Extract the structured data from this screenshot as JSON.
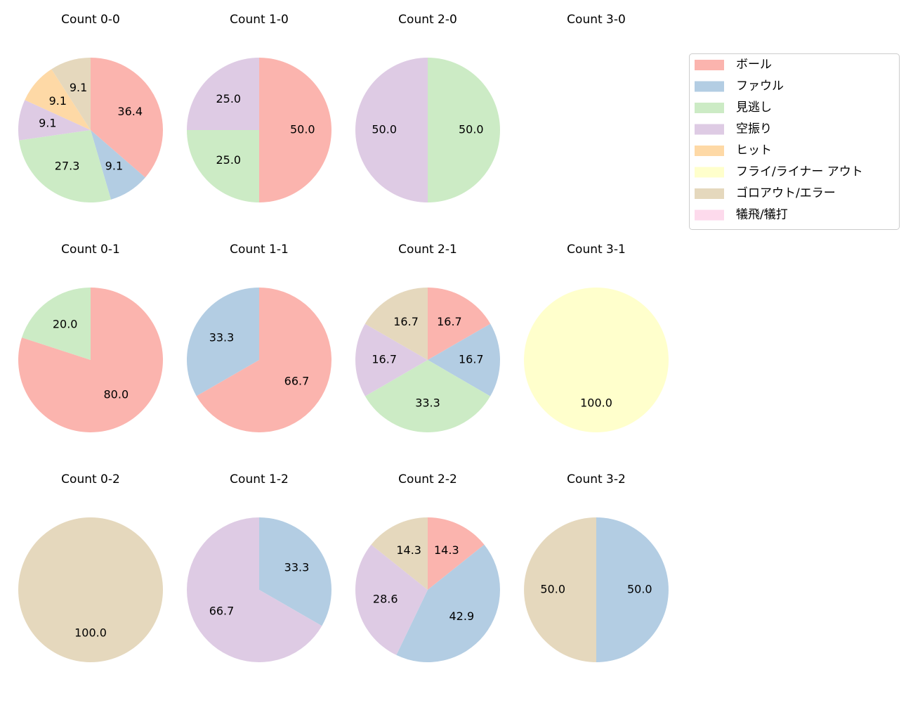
{
  "legend": {
    "position": "upper right",
    "entries": [
      {
        "name": "ボール",
        "color": "#fbb4ae"
      },
      {
        "name": "ファウル",
        "color": "#b3cde3"
      },
      {
        "name": "見逃し",
        "color": "#ccebc5"
      },
      {
        "name": "空振り",
        "color": "#decbe4"
      },
      {
        "name": "ヒット",
        "color": "#fed9a6"
      },
      {
        "name": "フライ/ライナー アウト",
        "color": "#ffffcc"
      },
      {
        "name": "ゴロアウト/エラー",
        "color": "#e5d8bd"
      },
      {
        "name": "犠飛/犠打",
        "color": "#fddaec"
      }
    ]
  },
  "chart_data": [
    {
      "type": "pie",
      "title": "Count 0-0",
      "categories": [
        "ボール",
        "ファウル",
        "見逃し",
        "空振り",
        "ヒット",
        "ゴロアウト/エラー"
      ],
      "values": [
        36.4,
        9.1,
        27.3,
        9.1,
        9.1,
        9.1
      ],
      "value_labels": [
        "36.4",
        "9.1",
        "27.3",
        "9.1",
        "9.1",
        "9.1"
      ]
    },
    {
      "type": "pie",
      "title": "Count 1-0",
      "categories": [
        "ボール",
        "見逃し",
        "空振り"
      ],
      "values": [
        50,
        25,
        25
      ],
      "value_labels": [
        "50.0",
        "25.0",
        "25.0"
      ]
    },
    {
      "type": "pie",
      "title": "Count 2-0",
      "categories": [
        "見逃し",
        "空振り"
      ],
      "values": [
        50,
        50
      ],
      "value_labels": [
        "50.0",
        "50.0"
      ]
    },
    {
      "type": "pie",
      "title": "Count 3-0",
      "categories": [],
      "values": [],
      "value_labels": []
    },
    {
      "type": "pie",
      "title": "Count 0-1",
      "categories": [
        "ボール",
        "見逃し"
      ],
      "values": [
        80,
        20
      ],
      "value_labels": [
        "80.0",
        "20.0"
      ]
    },
    {
      "type": "pie",
      "title": "Count 1-1",
      "categories": [
        "ボール",
        "ファウル"
      ],
      "values": [
        66.7,
        33.3
      ],
      "value_labels": [
        "66.7",
        "33.3"
      ]
    },
    {
      "type": "pie",
      "title": "Count 2-1",
      "categories": [
        "ボール",
        "ファウル",
        "見逃し",
        "空振り",
        "ゴロアウト/エラー"
      ],
      "values": [
        16.7,
        16.7,
        33.3,
        16.7,
        16.7
      ],
      "value_labels": [
        "16.7",
        "16.7",
        "33.3",
        "16.7",
        "16.7"
      ]
    },
    {
      "type": "pie",
      "title": "Count 3-1",
      "categories": [
        "フライ/ライナー アウト"
      ],
      "values": [
        100
      ],
      "value_labels": [
        "100.0"
      ]
    },
    {
      "type": "pie",
      "title": "Count 0-2",
      "categories": [
        "ゴロアウト/エラー"
      ],
      "values": [
        100
      ],
      "value_labels": [
        "100.0"
      ]
    },
    {
      "type": "pie",
      "title": "Count 1-2",
      "categories": [
        "ファウル",
        "空振り"
      ],
      "values": [
        33.3,
        66.7
      ],
      "value_labels": [
        "33.3",
        "66.7"
      ]
    },
    {
      "type": "pie",
      "title": "Count 2-2",
      "categories": [
        "ボール",
        "ファウル",
        "空振り",
        "ゴロアウト/エラー"
      ],
      "values": [
        14.3,
        42.9,
        28.6,
        14.3
      ],
      "value_labels": [
        "14.3",
        "42.9",
        "28.6",
        "14.3"
      ]
    },
    {
      "type": "pie",
      "title": "Count 3-2",
      "categories": [
        "ファウル",
        "ゴロアウト/エラー"
      ],
      "values": [
        50,
        50
      ],
      "value_labels": [
        "50.0",
        "50.0"
      ]
    }
  ]
}
